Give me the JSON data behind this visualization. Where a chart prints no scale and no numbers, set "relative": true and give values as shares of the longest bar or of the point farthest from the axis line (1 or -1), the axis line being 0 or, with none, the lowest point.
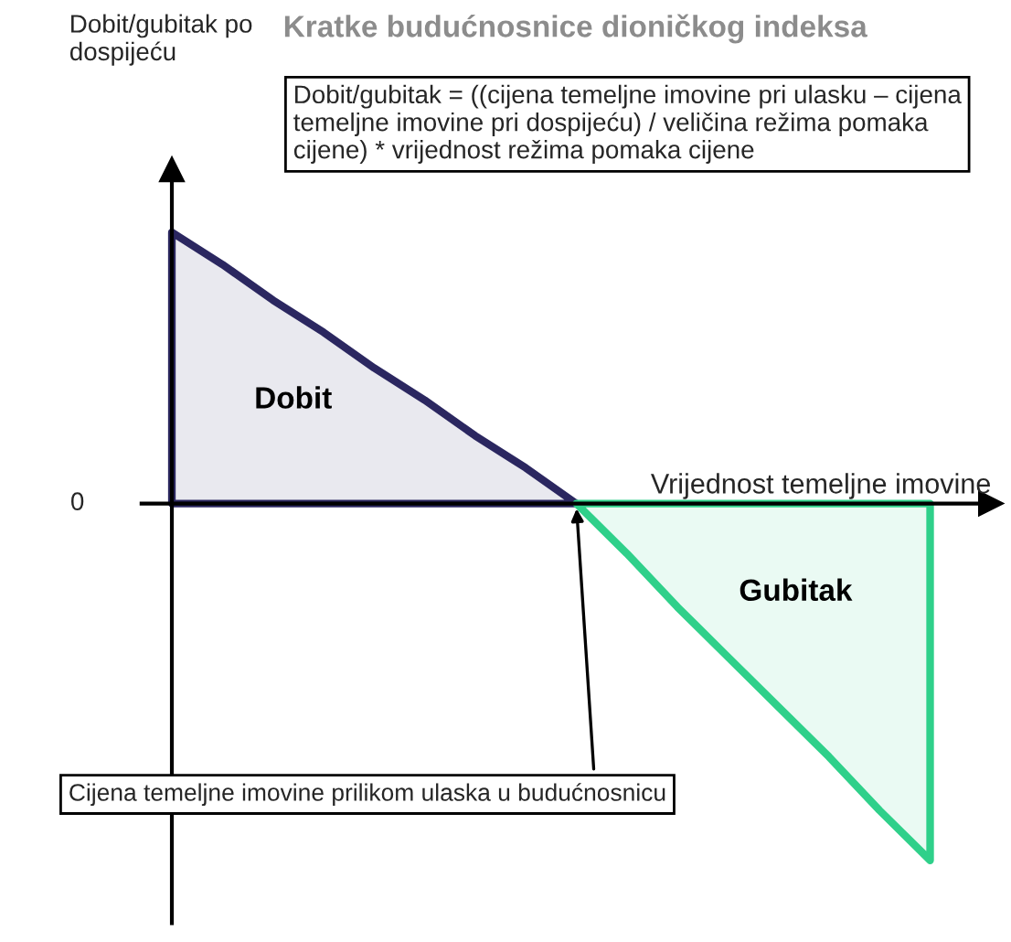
{
  "chart_data": {
    "type": "area",
    "relative": true,
    "title": "Kratke budućnosnice dioničkog indeksa",
    "xlabel": "Vrijednost temeljne imovine",
    "categories": [
      null,
      null,
      null,
      null,
      null,
      null,
      null,
      null,
      null,
      null,
      null,
      null,
      null,
      null,
      null,
      null
    ],
    "series": [
      {
        "name": "Dobit",
        "color": "#2b2760",
        "values": [
          0.76,
          0.67,
          0.57,
          0.48,
          0.38,
          0.29,
          0.19,
          0.1,
          0,
          null,
          null,
          null,
          null,
          null,
          null,
          null
        ]
      },
      {
        "name": "Gubitak",
        "color": "#2fd08a",
        "values": [
          null,
          null,
          null,
          null,
          null,
          null,
          null,
          null,
          0,
          -0.14,
          -0.29,
          -0.43,
          -0.57,
          -0.71,
          -0.86,
          -1
        ]
      }
    ],
    "annotations": [
      "Dobit/gubitak = ((cijena temeljne imovine pri ulasku – cijena temeljne imovine pri dospijeću) / veličina režima pomaka cijene) * vrijednost režima pomaka cijene",
      "Cijena temeljne imovine prilikom ulaska u budućnosnicu",
      "0",
      "Dobit/gubitak po dospijeću"
    ]
  }
}
